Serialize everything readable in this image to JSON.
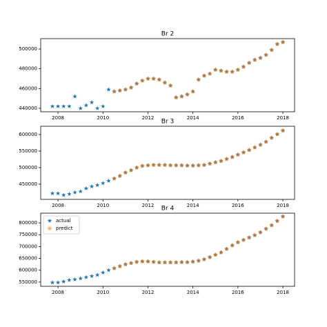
{
  "chart_data": [
    {
      "type": "scatter",
      "title": "Br 2",
      "x": [
        2007.75,
        2008,
        2008.25,
        2008.5,
        2008.75,
        2009,
        2009.25,
        2009.5,
        2009.75,
        2010,
        2010.25,
        2010.5,
        2010.75,
        2011,
        2011.25,
        2011.5,
        2011.75,
        2012,
        2012.25,
        2012.5,
        2012.75,
        2013,
        2013.25,
        2013.5,
        2013.75,
        2014,
        2014.25,
        2014.5,
        2014.75,
        2015,
        2015.25,
        2015.5,
        2015.75,
        2016,
        2016.25,
        2016.5,
        2016.75,
        2017,
        2017.25,
        2017.5,
        2017.75,
        2018
      ],
      "series": [
        {
          "name": "actual",
          "color": "#1f77b4",
          "marker": "star",
          "values": [
            442000,
            442000,
            442000,
            442000,
            452000,
            440000,
            443000,
            446000,
            440000,
            442000,
            459000,
            457000,
            458000,
            459000,
            461000,
            465000,
            468000,
            470000,
            470000,
            469000,
            466000,
            463000,
            451000,
            452000,
            454000,
            457000,
            469000,
            473000,
            475000,
            479000,
            478000,
            477000,
            477000,
            479000,
            482000,
            486000,
            489000,
            491000,
            494000,
            499000,
            505000,
            507000
          ]
        },
        {
          "name": "predict",
          "color": "#ff7f0e",
          "marker": "circle",
          "values": [
            null,
            null,
            null,
            null,
            null,
            null,
            null,
            null,
            null,
            null,
            null,
            457000,
            458000,
            459000,
            461000,
            465000,
            468000,
            470000,
            470000,
            469000,
            466000,
            463000,
            451000,
            452000,
            454000,
            457000,
            469000,
            473000,
            475000,
            479000,
            478000,
            477000,
            477000,
            479000,
            482000,
            486000,
            489000,
            491000,
            494000,
            499000,
            505000,
            507000
          ]
        }
      ],
      "xlim": [
        2007.23,
        2018.52
      ],
      "xticks": [
        2008,
        2010,
        2012,
        2014,
        2016,
        2018
      ],
      "ylim": [
        436500,
        510500
      ],
      "yticks": [
        440000,
        460000,
        480000,
        500000
      ]
    },
    {
      "type": "scatter",
      "title": "Br 3",
      "x": [
        2007.75,
        2008,
        2008.25,
        2008.5,
        2008.75,
        2009,
        2009.25,
        2009.5,
        2009.75,
        2010,
        2010.25,
        2010.5,
        2010.75,
        2011,
        2011.25,
        2011.5,
        2011.75,
        2012,
        2012.25,
        2012.5,
        2012.75,
        2013,
        2013.25,
        2013.5,
        2013.75,
        2014,
        2014.25,
        2014.5,
        2014.75,
        2015,
        2015.25,
        2015.5,
        2015.75,
        2016,
        2016.25,
        2016.5,
        2016.75,
        2017,
        2017.25,
        2017.5,
        2017.75,
        2018
      ],
      "series": [
        {
          "name": "actual",
          "color": "#1f77b4",
          "marker": "star",
          "values": [
            422000,
            422000,
            417000,
            420000,
            425000,
            428000,
            437000,
            443000,
            447000,
            453000,
            460000,
            467000,
            475000,
            485000,
            492000,
            500000,
            505000,
            507000,
            508000,
            508000,
            508000,
            507000,
            507000,
            507000,
            506000,
            506000,
            507000,
            508000,
            512000,
            516000,
            520000,
            526000,
            532000,
            539000,
            546000,
            553000,
            561000,
            569000,
            578000,
            590000,
            601000,
            612000
          ]
        },
        {
          "name": "predict",
          "color": "#ff7f0e",
          "marker": "circle",
          "values": [
            null,
            null,
            null,
            null,
            null,
            null,
            null,
            null,
            null,
            null,
            null,
            467000,
            475000,
            485000,
            492000,
            500000,
            505000,
            507000,
            508000,
            508000,
            508000,
            507000,
            507000,
            507000,
            506000,
            506000,
            507000,
            508000,
            512000,
            516000,
            520000,
            526000,
            532000,
            539000,
            546000,
            553000,
            561000,
            569000,
            578000,
            590000,
            601000,
            612000
          ]
        }
      ],
      "xlim": [
        2007.23,
        2018.52
      ],
      "xticks": [
        2008,
        2010,
        2012,
        2014,
        2016,
        2018
      ],
      "ylim": [
        404000,
        625000
      ],
      "yticks": [
        450000,
        500000,
        550000,
        600000
      ]
    },
    {
      "type": "scatter",
      "title": "Br 4",
      "x": [
        2007.75,
        2008,
        2008.25,
        2008.5,
        2008.75,
        2009,
        2009.25,
        2009.5,
        2009.75,
        2010,
        2010.25,
        2010.5,
        2010.75,
        2011,
        2011.25,
        2011.5,
        2011.75,
        2012,
        2012.25,
        2012.5,
        2012.75,
        2013,
        2013.25,
        2013.5,
        2013.75,
        2014,
        2014.25,
        2014.5,
        2014.75,
        2015,
        2015.25,
        2015.5,
        2015.75,
        2016,
        2016.25,
        2016.5,
        2016.75,
        2017,
        2017.25,
        2017.5,
        2017.75,
        2018
      ],
      "series": [
        {
          "name": "actual",
          "color": "#1f77b4",
          "marker": "star",
          "values": [
            548000,
            548000,
            552000,
            558000,
            561000,
            565000,
            570000,
            575000,
            580000,
            590000,
            600000,
            608000,
            617000,
            625000,
            630000,
            635000,
            637000,
            637000,
            635000,
            633000,
            633000,
            633000,
            633000,
            634000,
            634000,
            636000,
            640000,
            646000,
            655000,
            665000,
            675000,
            690000,
            705000,
            718000,
            728000,
            738000,
            748000,
            760000,
            775000,
            790000,
            808000,
            827000
          ]
        },
        {
          "name": "predict",
          "color": "#ff7f0e",
          "marker": "circle",
          "values": [
            null,
            null,
            null,
            null,
            null,
            null,
            null,
            null,
            null,
            null,
            null,
            608000,
            617000,
            625000,
            630000,
            635000,
            637000,
            637000,
            635000,
            633000,
            633000,
            633000,
            633000,
            634000,
            634000,
            636000,
            640000,
            646000,
            655000,
            665000,
            675000,
            690000,
            705000,
            718000,
            728000,
            738000,
            748000,
            760000,
            775000,
            790000,
            808000,
            827000
          ]
        }
      ],
      "xlim": [
        2007.23,
        2018.52
      ],
      "xticks": [
        2008,
        2010,
        2012,
        2014,
        2016,
        2018
      ],
      "ylim": [
        532000,
        841000
      ],
      "yticks": [
        550000,
        600000,
        650000,
        700000,
        750000,
        800000
      ],
      "legend": "upper left"
    }
  ]
}
